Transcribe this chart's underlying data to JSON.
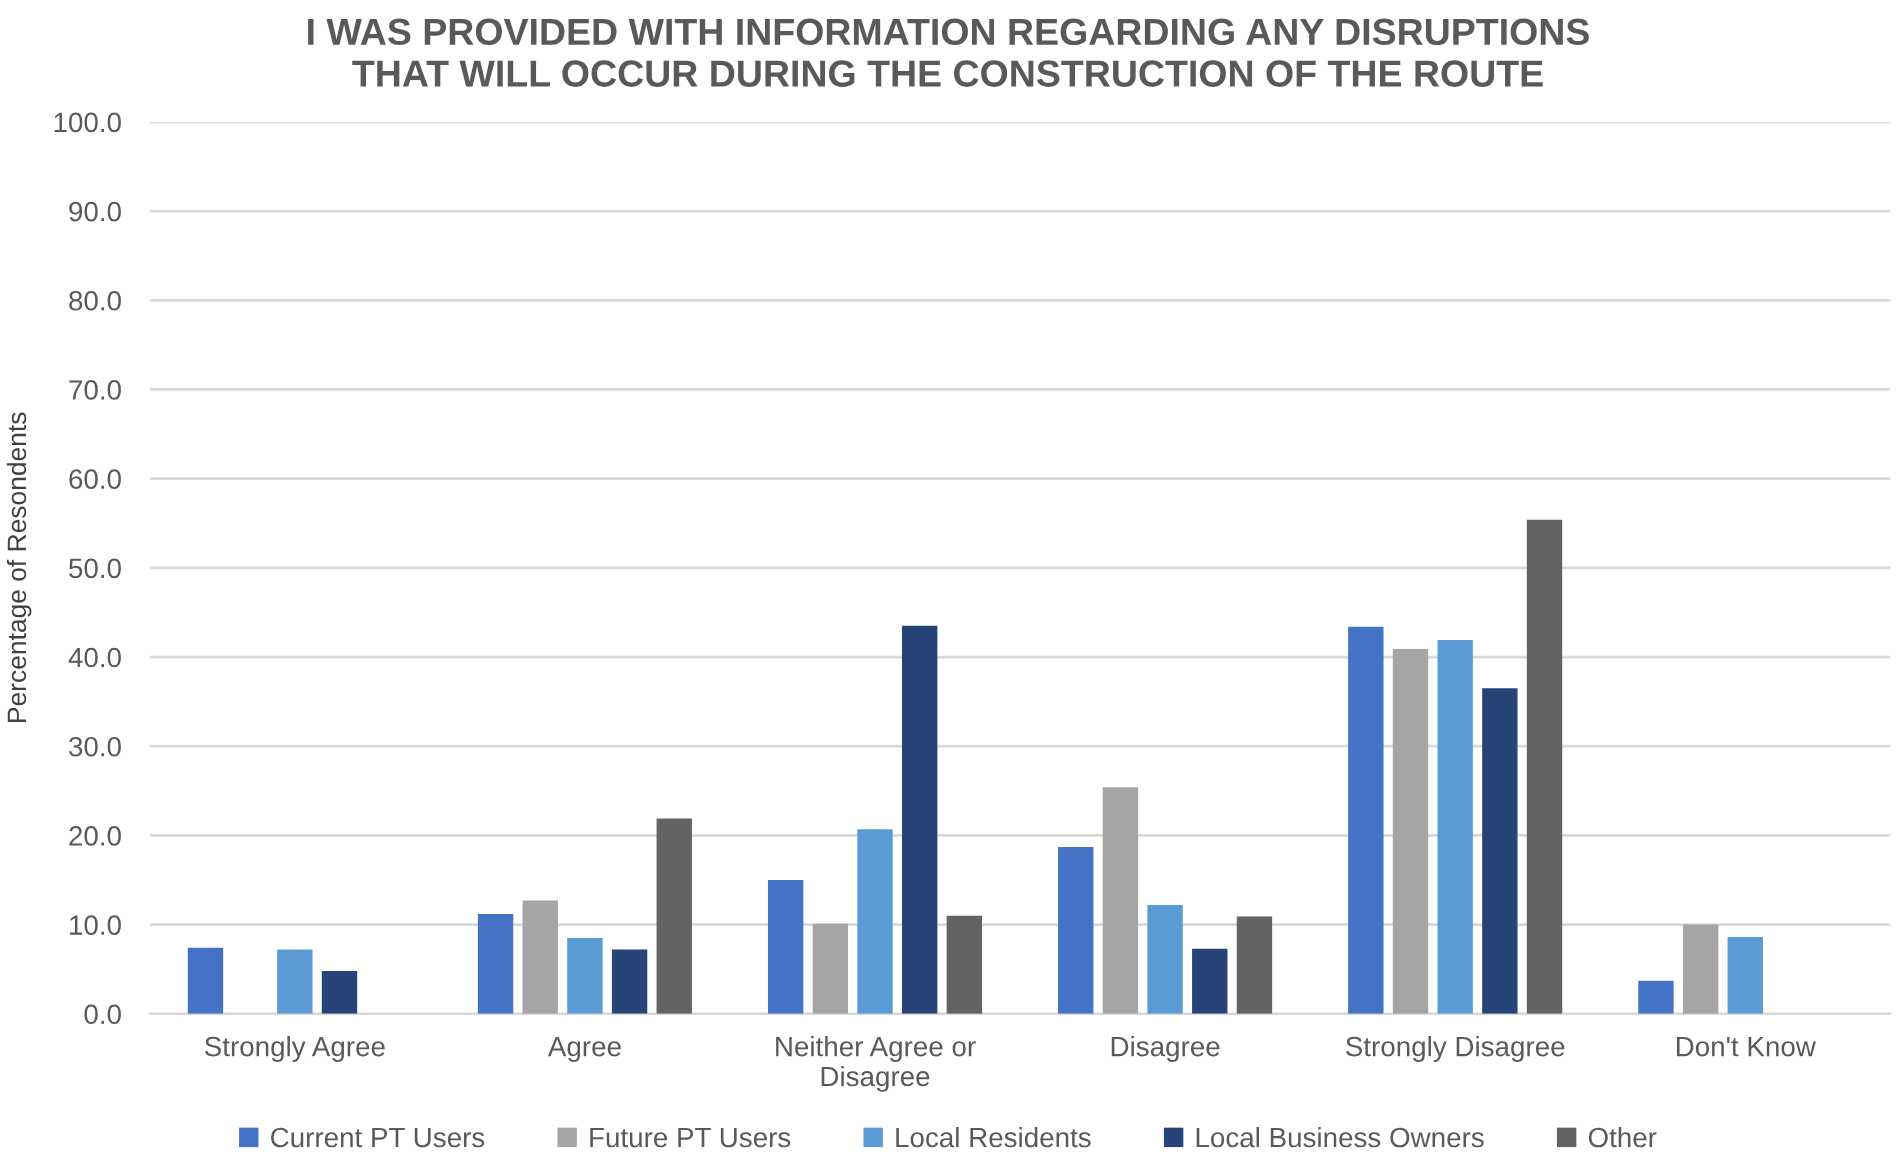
{
  "chart_data": {
    "type": "bar",
    "title": "I WAS PROVIDED WITH INFORMATION REGARDING ANY DISRUPTIONS THAT WILL OCCUR DURING THE CONSTRUCTION OF THE ROUTE",
    "ylabel": "Percentage of Resondents",
    "categories": [
      "Strongly Agree",
      "Agree",
      "Neither Agree or Disagree",
      "Disagree",
      "Strongly Disagree",
      "Don't Know"
    ],
    "series": [
      {
        "name": "Current PT Users",
        "color": "#4472c4",
        "values": [
          7.4,
          11.2,
          15.0,
          18.7,
          43.4,
          3.7
        ]
      },
      {
        "name": "Future PT Users",
        "color": "#a5a5a5",
        "values": [
          null,
          12.7,
          10.1,
          25.4,
          40.9,
          10.0
        ]
      },
      {
        "name": "Local Residents",
        "color": "#5b9bd5",
        "values": [
          7.2,
          8.5,
          20.7,
          12.2,
          41.9,
          8.6
        ]
      },
      {
        "name": "Local Business Owners",
        "color": "#264478",
        "values": [
          4.8,
          7.2,
          43.5,
          7.3,
          36.5,
          null
        ]
      },
      {
        "name": "Other",
        "color": "#636363",
        "values": [
          null,
          21.9,
          11.0,
          10.9,
          55.4,
          null
        ]
      }
    ],
    "ylim": [
      0,
      100
    ],
    "yticks": [
      {
        "value": 0,
        "label": "0.0"
      },
      {
        "value": 10,
        "label": "10.0"
      },
      {
        "value": 20,
        "label": "20.0"
      },
      {
        "value": 30,
        "label": "30.0"
      },
      {
        "value": 40,
        "label": "40.0"
      },
      {
        "value": 50,
        "label": "50.0"
      },
      {
        "value": 60,
        "label": "60.0"
      },
      {
        "value": 70,
        "label": "70.0"
      },
      {
        "value": 80,
        "label": "80.0"
      },
      {
        "value": 90,
        "label": "90.0"
      },
      {
        "value": 100,
        "label": "100.0"
      }
    ],
    "grid": "y",
    "legend": "bottom"
  }
}
